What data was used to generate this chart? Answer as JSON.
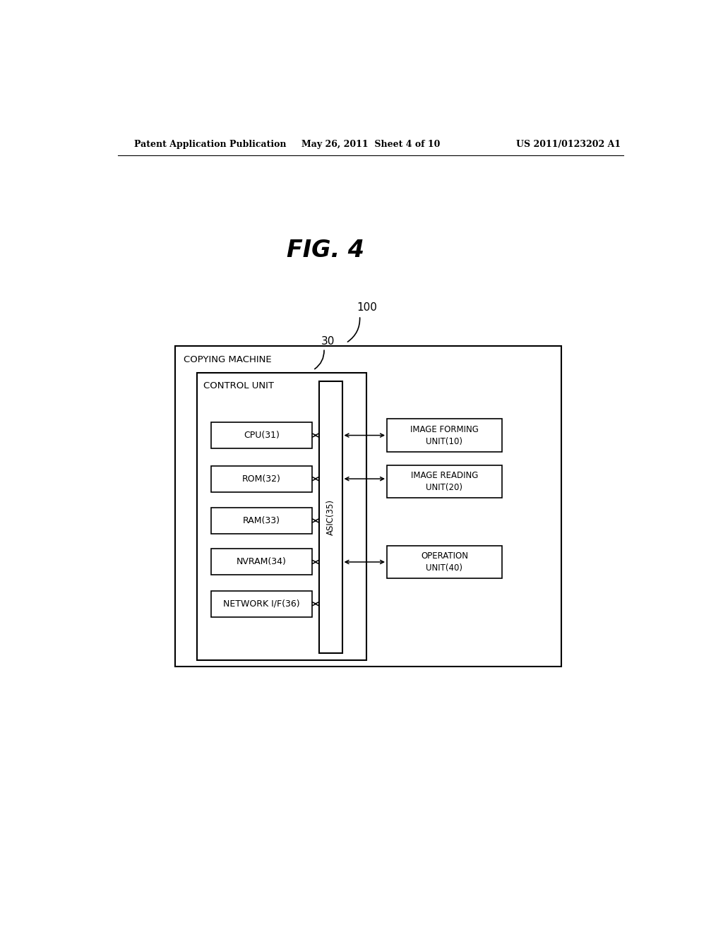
{
  "background_color": "#ffffff",
  "fig_title": "FIG. 4",
  "header_left": "Patent Application Publication",
  "header_mid": "May 26, 2011  Sheet 4 of 10",
  "header_right": "US 2011/0123202 A1",
  "outer_box_label": "COPYING MACHINE",
  "outer_box_ref": "100",
  "inner_box_label": "CONTROL UNIT",
  "inner_box_ref": "30",
  "asic_label": "ASIC(35)",
  "left_boxes": [
    {
      "label": "CPU(31)"
    },
    {
      "label": "ROM(32)"
    },
    {
      "label": "RAM(33)"
    },
    {
      "label": "NVRAM(34)"
    },
    {
      "label": "NETWORK I/F(36)"
    }
  ],
  "right_boxes": [
    {
      "label": "IMAGE FORMING\nUNIT(10)"
    },
    {
      "label": "IMAGE READING\nUNIT(20)"
    },
    {
      "label": "OPERATION\nUNIT(40)"
    }
  ],
  "page_width": 10.24,
  "page_height": 13.2
}
